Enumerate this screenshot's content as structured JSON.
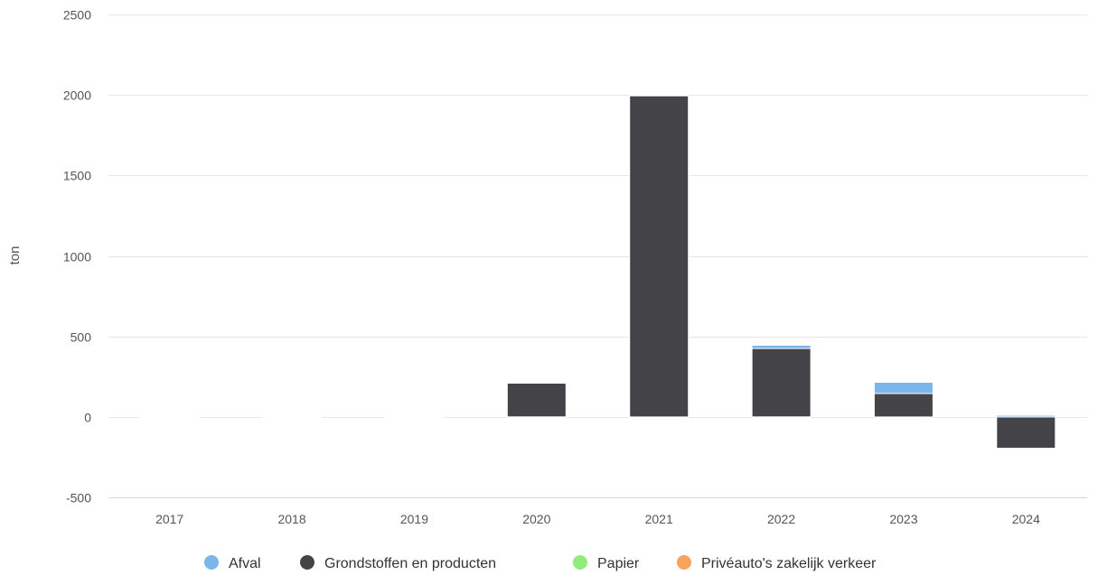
{
  "chart_data": {
    "type": "bar",
    "stacked": true,
    "categories": [
      "2017",
      "2018",
      "2019",
      "2020",
      "2021",
      "2022",
      "2023",
      "2024"
    ],
    "series": [
      {
        "name": "Afval",
        "color": "#7cb5ec",
        "values": [
          0,
          0,
          0,
          0,
          0,
          20,
          70,
          10
        ]
      },
      {
        "name": "Grondstoffen en producten",
        "color": "#434348",
        "values": [
          0,
          0,
          0,
          215,
          2000,
          425,
          145,
          -195
        ]
      },
      {
        "name": "Papier",
        "color": "#90ed7d",
        "values": [
          0,
          0,
          0,
          0,
          0,
          0,
          0,
          0
        ]
      },
      {
        "name": "Privéauto's zakelijk verkeer",
        "color": "#f7a35c",
        "values": [
          0,
          0,
          0,
          0,
          0,
          0,
          0,
          0
        ]
      }
    ],
    "ylabel": "ton",
    "xlabel": "",
    "ylim": [
      -500,
      2500
    ],
    "yticks": [
      -500,
      0,
      500,
      1000,
      1500,
      2000,
      2500
    ],
    "grid": true,
    "legend": "bottom"
  }
}
